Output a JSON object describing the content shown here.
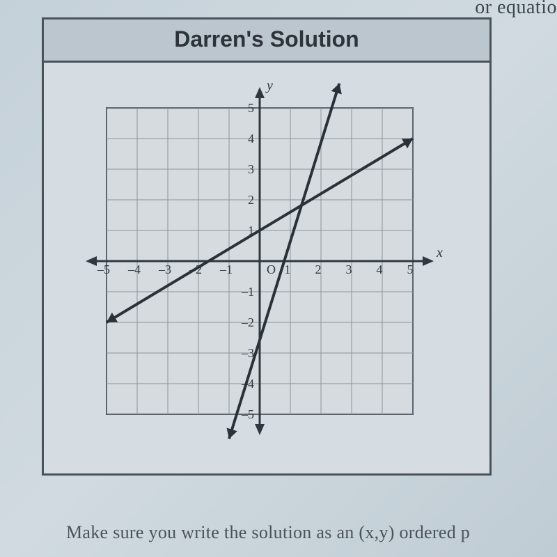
{
  "header": {
    "title": "Darren's Solution",
    "title_fontsize": 32,
    "background_color": "#bcc6cf",
    "border_color": "#4a525a"
  },
  "page": {
    "top_fragment": "or equatio",
    "bottom_fragment": "Make sure you write the solution as an (x,y) ordered p"
  },
  "chart": {
    "type": "line-graph",
    "background_color": "#d8dde2",
    "plot_background": "#d6dbe0",
    "grid_color": "#8a949c",
    "axis_color": "#30383f",
    "tick_label_color": "#30383f",
    "line_color": "#2a3138",
    "line_width": 4,
    "xlim": [
      -5,
      5
    ],
    "ylim": [
      -5,
      5
    ],
    "xtick_step": 1,
    "ytick_step": 1,
    "x_ticks": [
      -5,
      -4,
      -3,
      -2,
      -1,
      1,
      2,
      3,
      4,
      5
    ],
    "y_ticks": [
      -5,
      -4,
      -3,
      -2,
      -1,
      1,
      2,
      3,
      4,
      5
    ],
    "origin_label": "O",
    "x_axis_label": "x",
    "y_axis_label": "y",
    "tick_fontsize": 18,
    "axis_label_fontsize": 20,
    "series": [
      {
        "name": "line1",
        "points": [
          [
            -5,
            -2
          ],
          [
            5,
            4
          ]
        ],
        "arrows": "both"
      },
      {
        "name": "line2",
        "points": [
          [
            -1,
            -5.8
          ],
          [
            2.6,
            5.8
          ]
        ],
        "arrows": "both"
      }
    ]
  }
}
